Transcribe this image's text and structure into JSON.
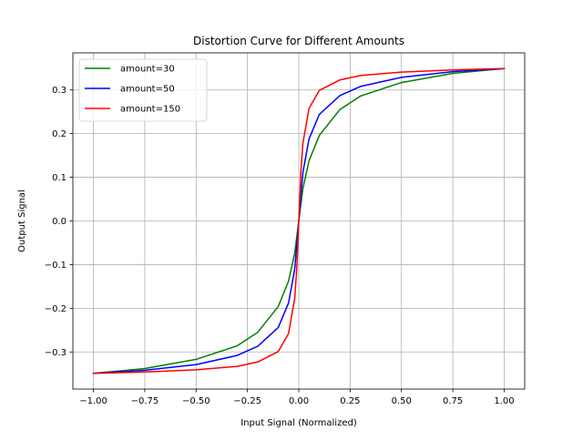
{
  "chart_data": {
    "type": "line",
    "title": "Distortion Curve for Different Amounts",
    "xlabel": "Input Signal (Normalized)",
    "ylabel": "Output Signal",
    "xlim": [
      -1.1,
      1.1
    ],
    "ylim": [
      -0.385,
      0.385
    ],
    "xticks": [
      -1.0,
      -0.75,
      -0.5,
      -0.25,
      0.0,
      0.25,
      0.5,
      0.75,
      1.0
    ],
    "xtick_labels": [
      "−1.00",
      "−0.75",
      "−0.50",
      "−0.25",
      "0.00",
      "0.25",
      "0.50",
      "0.75",
      "1.00"
    ],
    "yticks": [
      -0.3,
      -0.2,
      -0.1,
      0.0,
      0.1,
      0.2,
      0.3
    ],
    "ytick_labels": [
      "−0.3",
      "−0.2",
      "−0.1",
      "0.0",
      "0.1",
      "0.2",
      "0.3"
    ],
    "grid": true,
    "legend_position": "upper-left",
    "series": [
      {
        "name": "amount=30",
        "color": "#008000",
        "x": [
          -1.0,
          -0.75,
          -0.5,
          -0.3,
          -0.2,
          -0.1,
          -0.05,
          -0.02,
          0.0,
          0.02,
          0.05,
          0.1,
          0.2,
          0.3,
          0.5,
          0.75,
          1.0
        ],
        "y": [
          -0.349,
          -0.338,
          -0.317,
          -0.286,
          -0.255,
          -0.196,
          -0.138,
          -0.074,
          0.0,
          0.074,
          0.138,
          0.196,
          0.255,
          0.286,
          0.317,
          0.338,
          0.349
        ]
      },
      {
        "name": "amount=50",
        "color": "#0000ff",
        "x": [
          -1.0,
          -0.75,
          -0.5,
          -0.3,
          -0.2,
          -0.1,
          -0.05,
          -0.02,
          0.0,
          0.02,
          0.05,
          0.1,
          0.2,
          0.3,
          0.5,
          0.75,
          1.0
        ],
        "y": [
          -0.349,
          -0.342,
          -0.329,
          -0.308,
          -0.287,
          -0.244,
          -0.188,
          -0.111,
          0.0,
          0.111,
          0.188,
          0.244,
          0.287,
          0.308,
          0.329,
          0.342,
          0.349
        ]
      },
      {
        "name": "amount=150",
        "color": "#ff0000",
        "x": [
          -1.0,
          -0.75,
          -0.5,
          -0.3,
          -0.2,
          -0.1,
          -0.05,
          -0.02,
          -0.01,
          0.0,
          0.01,
          0.02,
          0.05,
          0.1,
          0.2,
          0.3,
          0.5,
          0.75,
          1.0
        ],
        "y": [
          -0.349,
          -0.346,
          -0.341,
          -0.333,
          -0.323,
          -0.299,
          -0.258,
          -0.178,
          -0.111,
          0.0,
          0.111,
          0.178,
          0.258,
          0.299,
          0.323,
          0.333,
          0.341,
          0.346,
          0.349
        ]
      }
    ]
  }
}
